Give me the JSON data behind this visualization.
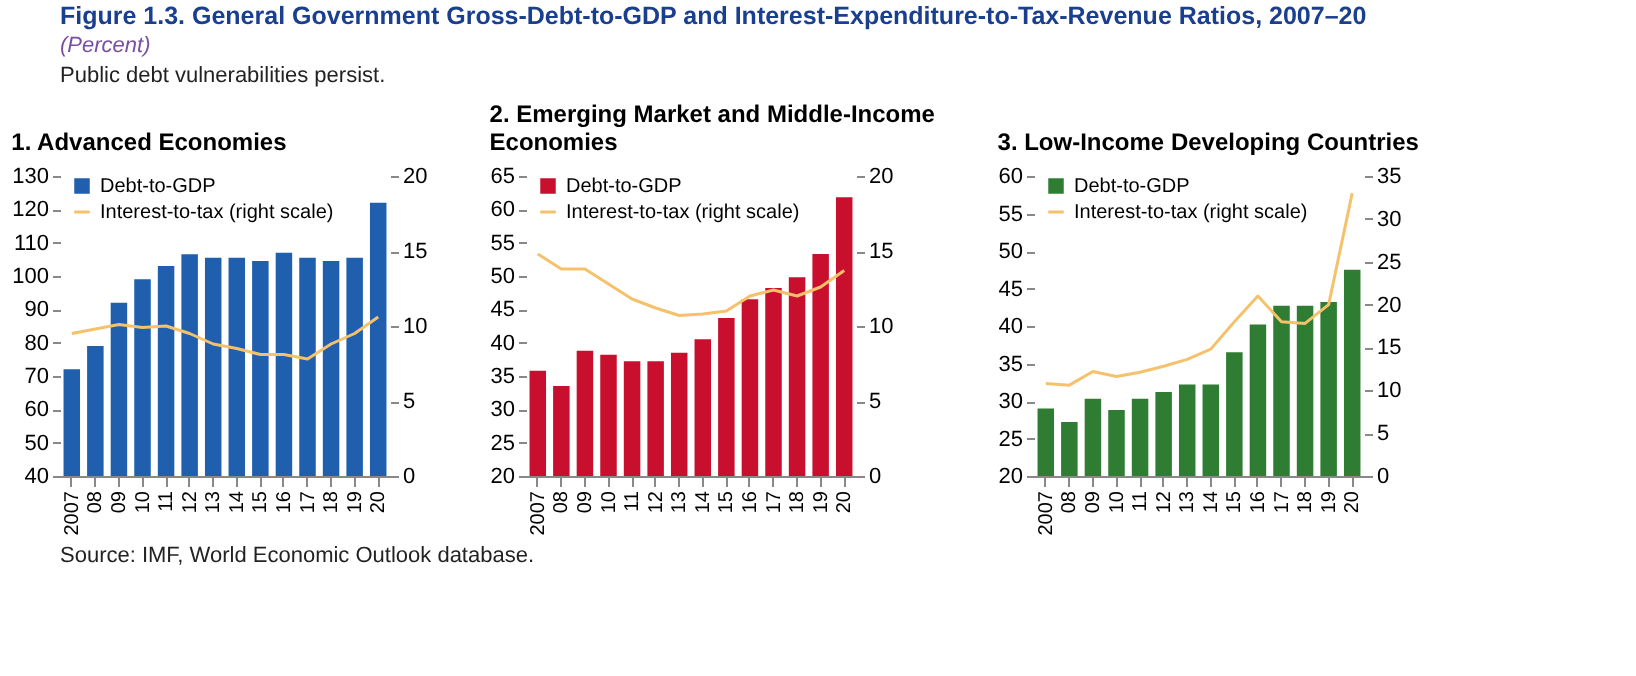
{
  "chart_data": [
    {
      "type": "bar",
      "title": "1. Advanced Economies",
      "categories": [
        "2007",
        "08",
        "09",
        "10",
        "11",
        "12",
        "13",
        "14",
        "15",
        "16",
        "17",
        "18",
        "19",
        "20"
      ],
      "ylim": [
        40,
        130
      ],
      "yticks": [
        40,
        50,
        60,
        70,
        80,
        90,
        100,
        110,
        120,
        130
      ],
      "y2lim": [
        0,
        20
      ],
      "y2ticks": [
        0,
        5,
        10,
        15,
        20
      ],
      "legend": "top left",
      "series": [
        {
          "name": "Debt-to-GDP",
          "color": "#1f5fae",
          "values": [
            72,
            79,
            92,
            99,
            103,
            106.5,
            105.5,
            105.5,
            104.5,
            107,
            105.5,
            104.5,
            105.5,
            122
          ]
        },
        {
          "name": "Interest-to-tax (right scale)",
          "type": "line",
          "axis": "y2",
          "color": "#f5c26b",
          "values": [
            9.5,
            9.8,
            10.1,
            9.9,
            10,
            9.5,
            8.8,
            8.5,
            8.1,
            8.1,
            7.8,
            8.8,
            9.5,
            10.6
          ]
        }
      ],
      "annotations": [
        "Figure 1.3. General Government Gross-Debt-to-GDP and Interest-Expenditure-to-Tax-Revenue Ratios, 2007–20",
        "(Percent)",
        "Public debt vulnerabilities persist.",
        "Source: IMF, World Economic Outlook database."
      ]
    },
    {
      "type": "bar",
      "title": "2. Emerging Market and Middle-Income Economies",
      "categories": [
        "2007",
        "08",
        "09",
        "10",
        "11",
        "12",
        "13",
        "14",
        "15",
        "16",
        "17",
        "18",
        "19",
        "20"
      ],
      "ylim": [
        20,
        65
      ],
      "yticks": [
        20,
        25,
        30,
        35,
        40,
        45,
        50,
        55,
        60,
        65
      ],
      "y2lim": [
        0,
        20
      ],
      "y2ticks": [
        0,
        5,
        10,
        15,
        20
      ],
      "legend": "top left",
      "series": [
        {
          "name": "Debt-to-GDP",
          "color": "#c8102e",
          "values": [
            35.8,
            33.5,
            38.8,
            38.2,
            37.2,
            37.2,
            38.5,
            40.5,
            43.7,
            46.5,
            48.2,
            49.8,
            53.3,
            61.8
          ]
        },
        {
          "name": "Interest-to-tax (right scale)",
          "type": "line",
          "axis": "y2",
          "color": "#f5c26b",
          "values": [
            14.8,
            13.8,
            13.8,
            12.8,
            11.8,
            11.2,
            10.7,
            10.8,
            11,
            12,
            12.4,
            12,
            12.6,
            13.7
          ]
        }
      ]
    },
    {
      "type": "bar",
      "title": "3. Low-Income Developing Countries",
      "categories": [
        "2007",
        "08",
        "09",
        "10",
        "11",
        "12",
        "13",
        "14",
        "15",
        "16",
        "17",
        "18",
        "19",
        "20"
      ],
      "ylim": [
        20,
        60
      ],
      "yticks": [
        20,
        25,
        30,
        35,
        40,
        45,
        50,
        55,
        60
      ],
      "y2lim": [
        0,
        35
      ],
      "y2ticks": [
        0,
        5,
        10,
        15,
        20,
        25,
        30,
        35
      ],
      "legend": "top left",
      "series": [
        {
          "name": "Debt-to-GDP",
          "color": "#2e7d32",
          "values": [
            29,
            27.2,
            30.3,
            28.8,
            30.3,
            31.2,
            32.2,
            32.2,
            36.5,
            40.2,
            42.7,
            42.7,
            43.2,
            47.5
          ]
        },
        {
          "name": "Interest-to-tax (right scale)",
          "type": "line",
          "axis": "y2",
          "color": "#f5c26b",
          "values": [
            10.8,
            10.6,
            12.2,
            11.6,
            12.1,
            12.8,
            13.6,
            14.8,
            18,
            21,
            18,
            17.8,
            20,
            33
          ]
        }
      ]
    }
  ]
}
